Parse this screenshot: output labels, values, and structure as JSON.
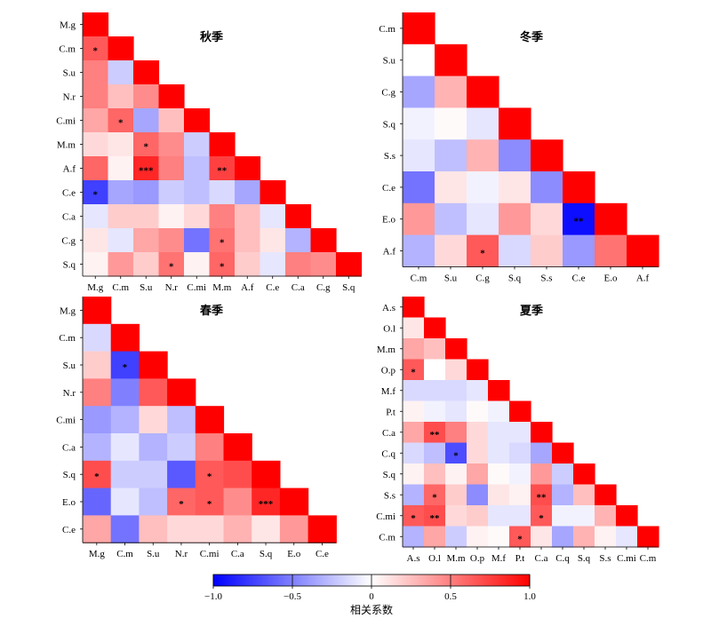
{
  "colorbar": {
    "label": "相关系数",
    "ticks": [
      "−1.0",
      "−0.5",
      "0",
      "0.5",
      "1.0"
    ],
    "tick_values": [
      -1.0,
      -0.5,
      0,
      0.5,
      1.0
    ],
    "min_color": "#0000ff",
    "mid_color": "#ffffff",
    "max_color": "#ff0000"
  },
  "chart_data": [
    {
      "type": "heatmap",
      "title": "秋季",
      "variables": [
        "M.g",
        "C.m",
        "S.u",
        "N.r",
        "C.mi",
        "M.m",
        "A.f",
        "C.e",
        "C.a",
        "C.g",
        "S.q"
      ],
      "colorbar_range": [
        -1,
        1
      ],
      "matrix_lower": [
        [
          1.0
        ],
        [
          0.65,
          1.0
        ],
        [
          0.5,
          -0.2,
          1.0
        ],
        [
          0.5,
          0.25,
          0.45,
          1.0
        ],
        [
          0.35,
          0.6,
          -0.35,
          0.25,
          1.0
        ],
        [
          0.15,
          0.1,
          0.6,
          0.45,
          -0.2,
          1.0
        ],
        [
          0.6,
          0.05,
          0.85,
          0.5,
          -0.25,
          0.75,
          1.0
        ],
        [
          -0.75,
          -0.35,
          -0.4,
          -0.2,
          -0.25,
          -0.15,
          -0.35,
          1.0
        ],
        [
          -0.1,
          0.2,
          0.2,
          0.05,
          0.15,
          0.5,
          0.25,
          -0.1,
          1.0
        ],
        [
          0.1,
          -0.1,
          0.35,
          0.45,
          -0.55,
          0.55,
          0.25,
          0.1,
          -0.3,
          1.0
        ],
        [
          0.05,
          0.4,
          0.2,
          0.55,
          0.05,
          0.6,
          0.2,
          -0.1,
          0.5,
          0.45,
          1.0
        ]
      ],
      "significance_lower": [
        [
          ""
        ],
        [
          "*",
          ""
        ],
        [
          "",
          "",
          ""
        ],
        [
          "",
          "",
          "",
          ""
        ],
        [
          "",
          "*",
          "",
          "",
          ""
        ],
        [
          "",
          "",
          "*",
          "",
          "",
          ""
        ],
        [
          "",
          "",
          "***",
          "",
          "",
          "**",
          ""
        ],
        [
          "*",
          "",
          "",
          "",
          "",
          "",
          "",
          ""
        ],
        [
          "",
          "",
          "",
          "",
          "",
          "",
          "",
          "",
          ""
        ],
        [
          "",
          "",
          "",
          "",
          "",
          "*",
          "",
          "",
          "",
          ""
        ],
        [
          "",
          "",
          "",
          "*",
          "",
          "*",
          "",
          "",
          "",
          "",
          ""
        ]
      ]
    },
    {
      "type": "heatmap",
      "title": "冬季",
      "variables": [
        "C.m",
        "S.u",
        "C.g",
        "S.q",
        "S.s",
        "C.e",
        "E.o",
        "A.f"
      ],
      "colorbar_range": [
        -1,
        1
      ],
      "matrix_lower": [
        [
          1.0
        ],
        [
          0.0,
          1.0
        ],
        [
          -0.35,
          0.3,
          1.0
        ],
        [
          -0.05,
          0.02,
          -0.1,
          1.0
        ],
        [
          -0.1,
          -0.25,
          0.3,
          -0.45,
          1.0
        ],
        [
          -0.55,
          0.1,
          -0.05,
          0.1,
          -0.45,
          1.0
        ],
        [
          0.4,
          -0.25,
          -0.1,
          0.4,
          0.15,
          -0.95,
          1.0
        ],
        [
          -0.3,
          0.15,
          0.65,
          -0.15,
          0.2,
          -0.4,
          0.55,
          1.0
        ]
      ],
      "significance_lower": [
        [
          ""
        ],
        [
          "",
          ""
        ],
        [
          "",
          "",
          ""
        ],
        [
          "",
          "",
          "",
          ""
        ],
        [
          "",
          "",
          "",
          "",
          ""
        ],
        [
          "",
          "",
          "",
          "",
          "",
          ""
        ],
        [
          "",
          "",
          "",
          "",
          "",
          "**",
          ""
        ],
        [
          "",
          "",
          "*",
          "",
          "",
          "",
          "",
          ""
        ]
      ]
    },
    {
      "type": "heatmap",
      "title": "春季",
      "variables": [
        "M.g",
        "C.m",
        "S.u",
        "N.r",
        "C.mi",
        "C.a",
        "S.q",
        "E.o",
        "C.e"
      ],
      "colorbar_range": [
        -1,
        1
      ],
      "matrix_lower": [
        [
          1.0
        ],
        [
          -0.15,
          1.0
        ],
        [
          0.2,
          -0.75,
          1.0
        ],
        [
          0.5,
          -0.5,
          0.65,
          1.0
        ],
        [
          -0.4,
          -0.3,
          0.15,
          -0.25,
          1.0
        ],
        [
          -0.3,
          -0.1,
          -0.3,
          -0.2,
          0.5,
          1.0
        ],
        [
          0.7,
          -0.2,
          -0.2,
          -0.65,
          0.65,
          0.7,
          1.0
        ],
        [
          -0.6,
          -0.1,
          -0.25,
          0.6,
          0.65,
          0.45,
          0.85,
          1.0
        ],
        [
          0.35,
          -0.55,
          0.25,
          0.15,
          0.15,
          0.3,
          0.1,
          0.4,
          1.0
        ]
      ],
      "significance_lower": [
        [
          ""
        ],
        [
          "",
          ""
        ],
        [
          "",
          "*",
          ""
        ],
        [
          "",
          "",
          "",
          ""
        ],
        [
          "",
          "",
          "",
          "",
          ""
        ],
        [
          "",
          "",
          "",
          "",
          "",
          ""
        ],
        [
          "*",
          "",
          "",
          "",
          "*",
          "",
          ""
        ],
        [
          "",
          "",
          "",
          "*",
          "*",
          "",
          "***",
          ""
        ],
        [
          "",
          "",
          "",
          "",
          "",
          "",
          "",
          "",
          ""
        ]
      ]
    },
    {
      "type": "heatmap",
      "title": "夏季",
      "variables": [
        "A.s",
        "O.l",
        "M.m",
        "O.p",
        "M.f",
        "P.t",
        "C.a",
        "C.q",
        "S.q",
        "S.s",
        "C.mi",
        "C.m"
      ],
      "colorbar_range": [
        -1,
        1
      ],
      "matrix_lower": [
        [
          1.0
        ],
        [
          0.1,
          1.0
        ],
        [
          0.35,
          0.25,
          1.0
        ],
        [
          0.65,
          0.0,
          0.15,
          1.0
        ],
        [
          -0.15,
          -0.15,
          -0.15,
          -0.1,
          1.0
        ],
        [
          0.05,
          -0.05,
          -0.1,
          0.02,
          -0.05,
          1.0
        ],
        [
          0.35,
          0.7,
          0.5,
          0.15,
          -0.1,
          -0.1,
          1.0
        ],
        [
          -0.15,
          -0.25,
          -0.7,
          0.15,
          -0.1,
          -0.15,
          -0.35,
          1.0
        ],
        [
          0.05,
          0.25,
          0.05,
          0.35,
          0.02,
          -0.05,
          0.4,
          -0.2,
          1.0
        ],
        [
          -0.3,
          0.6,
          0.2,
          -0.45,
          0.1,
          0.05,
          0.7,
          -0.3,
          0.25,
          1.0
        ],
        [
          0.65,
          0.7,
          0.15,
          0.2,
          -0.1,
          -0.1,
          0.65,
          -0.05,
          -0.05,
          0.3,
          1.0
        ],
        [
          -0.3,
          0.35,
          -0.2,
          0.05,
          0.02,
          0.65,
          0.1,
          -0.35,
          0.3,
          0.05,
          -0.1,
          1.0
        ]
      ],
      "significance_lower": [
        [
          ""
        ],
        [
          "",
          ""
        ],
        [
          "",
          "",
          ""
        ],
        [
          "*",
          "",
          "",
          ""
        ],
        [
          "",
          "",
          "",
          "",
          ""
        ],
        [
          "",
          "",
          "",
          "",
          "",
          ""
        ],
        [
          "",
          "**",
          "",
          "",
          "",
          "",
          ""
        ],
        [
          "",
          "",
          "*",
          "",
          "",
          "",
          "",
          ""
        ],
        [
          "",
          "",
          "",
          "",
          "",
          "",
          "",
          "",
          ""
        ],
        [
          "",
          "*",
          "",
          "",
          "",
          "",
          "**",
          "",
          "",
          ""
        ],
        [
          "*",
          "**",
          "",
          "",
          "",
          "",
          "*",
          "",
          "",
          "",
          ""
        ],
        [
          "",
          "",
          "",
          "",
          "",
          "*",
          "",
          "",
          "",
          "",
          "",
          ""
        ]
      ]
    }
  ]
}
